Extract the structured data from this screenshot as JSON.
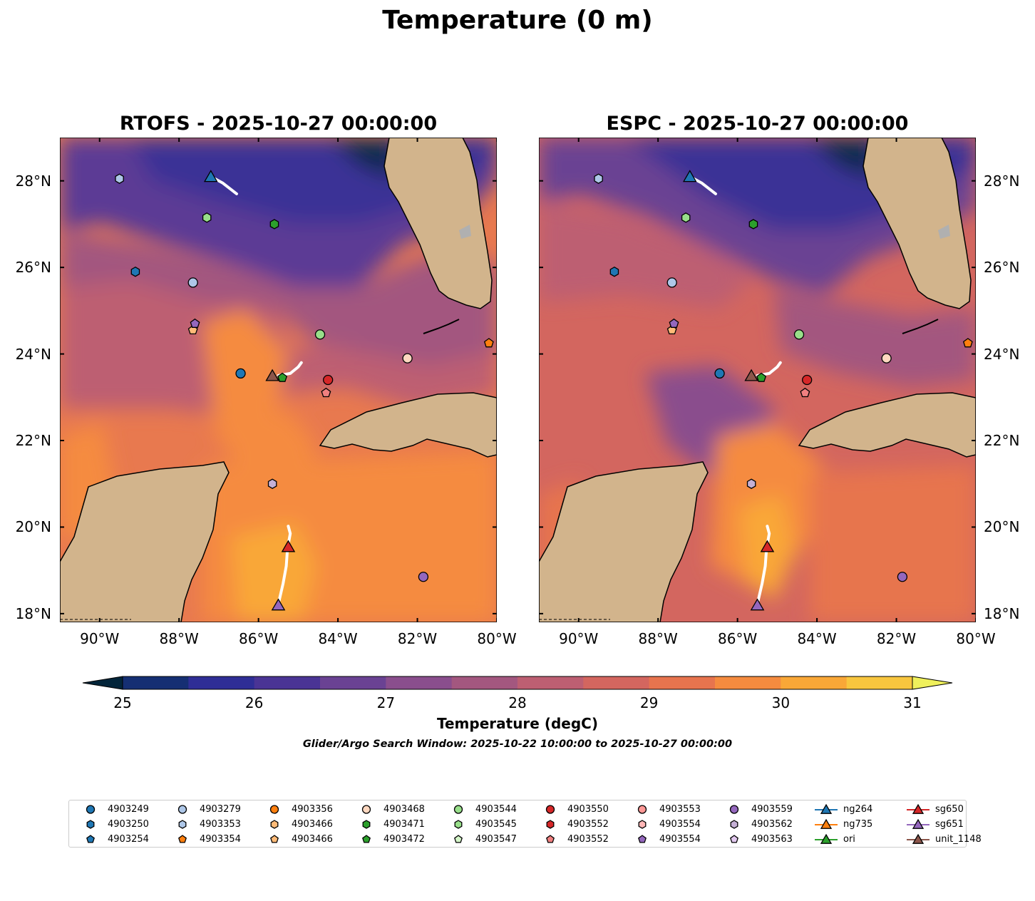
{
  "title": "Temperature (0 m)",
  "panels": [
    {
      "title": "RTOFS - 2025-10-27 00:00:00"
    },
    {
      "title": "ESPC - 2025-10-27 00:00:00"
    }
  ],
  "axes": {
    "lon_labels": [
      "90°W",
      "88°W",
      "86°W",
      "84°W",
      "82°W",
      "80°W"
    ],
    "lat_labels": [
      "28°N",
      "26°N",
      "24°N",
      "22°N",
      "20°N",
      "18°N"
    ]
  },
  "colorbar": {
    "label": "Temperature (degC)",
    "ticks": [
      "25",
      "26",
      "27",
      "28",
      "29",
      "30",
      "31"
    ],
    "colors": [
      "#03253a",
      "#152f73",
      "#2f2e96",
      "#4a3495",
      "#6a4293",
      "#8a4e8d",
      "#a3577f",
      "#bd5f72",
      "#d3665f",
      "#e7744e",
      "#f58b3f",
      "#f9a737",
      "#f8c63e",
      "#eff05c"
    ]
  },
  "search_window": "Glider/Argo Search Window: 2025-10-22 10:00:00 to 2025-10-27 00:00:00",
  "legend": [
    {
      "label": "4903249",
      "marker": "circle",
      "color": "#1f77b4"
    },
    {
      "label": "4903250",
      "marker": "hexagon",
      "color": "#1f77b4"
    },
    {
      "label": "4903254",
      "marker": "pentagon",
      "color": "#1f77b4"
    },
    {
      "label": "4903279",
      "marker": "circle",
      "color": "#aec7e8"
    },
    {
      "label": "4903353",
      "marker": "hexagon",
      "color": "#aec7e8"
    },
    {
      "label": "4903354",
      "marker": "pentagon",
      "color": "#ff7f0e"
    },
    {
      "label": "4903356",
      "marker": "circle",
      "color": "#ff7f0e"
    },
    {
      "label": "4903466",
      "marker": "hexagon",
      "color": "#ffbb78"
    },
    {
      "label": "4903466",
      "marker": "pentagon",
      "color": "#ffbb78"
    },
    {
      "label": "4903468",
      "marker": "circle",
      "color": "#ffd8c0"
    },
    {
      "label": "4903471",
      "marker": "hexagon",
      "color": "#2ca02c"
    },
    {
      "label": "4903472",
      "marker": "pentagon",
      "color": "#2ca02c"
    },
    {
      "label": "4903544",
      "marker": "circle",
      "color": "#98df8a"
    },
    {
      "label": "4903545",
      "marker": "hexagon",
      "color": "#98df8a"
    },
    {
      "label": "4903547",
      "marker": "pentagon",
      "color": "#d4f5c8"
    },
    {
      "label": "4903550",
      "marker": "circle",
      "color": "#d62728"
    },
    {
      "label": "4903552",
      "marker": "hexagon",
      "color": "#d62728"
    },
    {
      "label": "4903552",
      "marker": "pentagon",
      "color": "#f08080"
    },
    {
      "label": "4903553",
      "marker": "circle",
      "color": "#ff9896"
    },
    {
      "label": "4903554",
      "marker": "hexagon",
      "color": "#ffb6b6"
    },
    {
      "label": "4903554",
      "marker": "pentagon",
      "color": "#9467bd"
    },
    {
      "label": "4903559",
      "marker": "circle",
      "color": "#9467bd"
    },
    {
      "label": "4903562",
      "marker": "hexagon",
      "color": "#c5b0d5"
    },
    {
      "label": "4903563",
      "marker": "pentagon",
      "color": "#e2c8ef"
    },
    {
      "label": "ng264",
      "marker": "triangle",
      "color": "#1f77b4",
      "line": true
    },
    {
      "label": "ng735",
      "marker": "triangle",
      "color": "#ff7f0e",
      "line": true
    },
    {
      "label": "ori",
      "marker": "triangle",
      "color": "#2ca02c",
      "line": true
    },
    {
      "label": "sg650",
      "marker": "triangle",
      "color": "#d62728",
      "line": true
    },
    {
      "label": "sg651",
      "marker": "triangle",
      "color": "#9467bd",
      "line": true
    },
    {
      "label": "unit_1148",
      "marker": "triangle",
      "color": "#8c564b",
      "line": true
    }
  ],
  "observations": [
    {
      "id": "4903249",
      "marker": "circle",
      "color": "#1f77b4",
      "lon": -86.45,
      "lat": 23.55
    },
    {
      "id": "4903250",
      "marker": "hexagon",
      "color": "#1f77b4",
      "lon": -89.1,
      "lat": 25.9
    },
    {
      "id": "4903279",
      "marker": "circle",
      "color": "#aec7e8",
      "lon": -87.65,
      "lat": 25.65
    },
    {
      "id": "4903353",
      "marker": "hexagon",
      "color": "#aec7e8",
      "lon": -89.5,
      "lat": 28.05
    },
    {
      "id": "4903354",
      "marker": "pentagon",
      "color": "#ff7f0e",
      "lon": -80.2,
      "lat": 24.25
    },
    {
      "id": "4903466",
      "marker": "pentagon",
      "color": "#ffbb78",
      "lon": -87.65,
      "lat": 24.55
    },
    {
      "id": "4903468",
      "marker": "circle",
      "color": "#ffd8c0",
      "lon": -82.25,
      "lat": 23.9
    },
    {
      "id": "4903471",
      "marker": "hexagon",
      "color": "#2ca02c",
      "lon": -85.6,
      "lat": 27.0
    },
    {
      "id": "4903472",
      "marker": "pentagon",
      "color": "#2ca02c",
      "lon": -85.4,
      "lat": 23.45
    },
    {
      "id": "4903544",
      "marker": "circle",
      "color": "#98df8a",
      "lon": -84.45,
      "lat": 24.45
    },
    {
      "id": "4903545",
      "marker": "hexagon",
      "color": "#98df8a",
      "lon": -87.3,
      "lat": 27.15
    },
    {
      "id": "4903550",
      "marker": "circle",
      "color": "#d62728",
      "lon": -84.25,
      "lat": 23.4
    },
    {
      "id": "4903552",
      "marker": "pentagon",
      "color": "#f08080",
      "lon": -84.3,
      "lat": 23.1
    },
    {
      "id": "4903554",
      "marker": "pentagon",
      "color": "#9467bd",
      "lon": -87.6,
      "lat": 24.7
    },
    {
      "id": "4903559",
      "marker": "circle",
      "color": "#9467bd",
      "lon": -81.85,
      "lat": 18.85
    },
    {
      "id": "4903562",
      "marker": "hexagon",
      "color": "#c5b0d5",
      "lon": -85.65,
      "lat": 21.0
    }
  ],
  "gliders": [
    {
      "id": "ng264",
      "color": "#1f77b4",
      "lon": -87.2,
      "lat": 28.1,
      "track": [
        [
          -87.2,
          28.1
        ],
        [
          -86.9,
          27.95
        ],
        [
          -86.55,
          27.7
        ]
      ]
    },
    {
      "id": "sg650",
      "color": "#d62728",
      "lon": -85.25,
      "lat": 19.55,
      "track": [
        [
          -85.25,
          20.02
        ],
        [
          -85.2,
          19.85
        ],
        [
          -85.27,
          19.5
        ],
        [
          -85.3,
          19.1
        ],
        [
          -85.38,
          18.7
        ],
        [
          -85.48,
          18.3
        ]
      ]
    },
    {
      "id": "sg651",
      "color": "#9467bd",
      "lon": -85.5,
      "lat": 18.2,
      "track": []
    },
    {
      "id": "unit_1148",
      "color": "#8c564b",
      "lon": -85.65,
      "lat": 23.5,
      "track": [
        [
          -85.5,
          23.5
        ],
        [
          -85.2,
          23.55
        ],
        [
          -85.0,
          23.7
        ],
        [
          -84.92,
          23.8
        ]
      ]
    }
  ],
  "map_extent": {
    "lon": [
      -91.0,
      -80.0
    ],
    "lat": [
      17.8,
      29.0
    ]
  }
}
